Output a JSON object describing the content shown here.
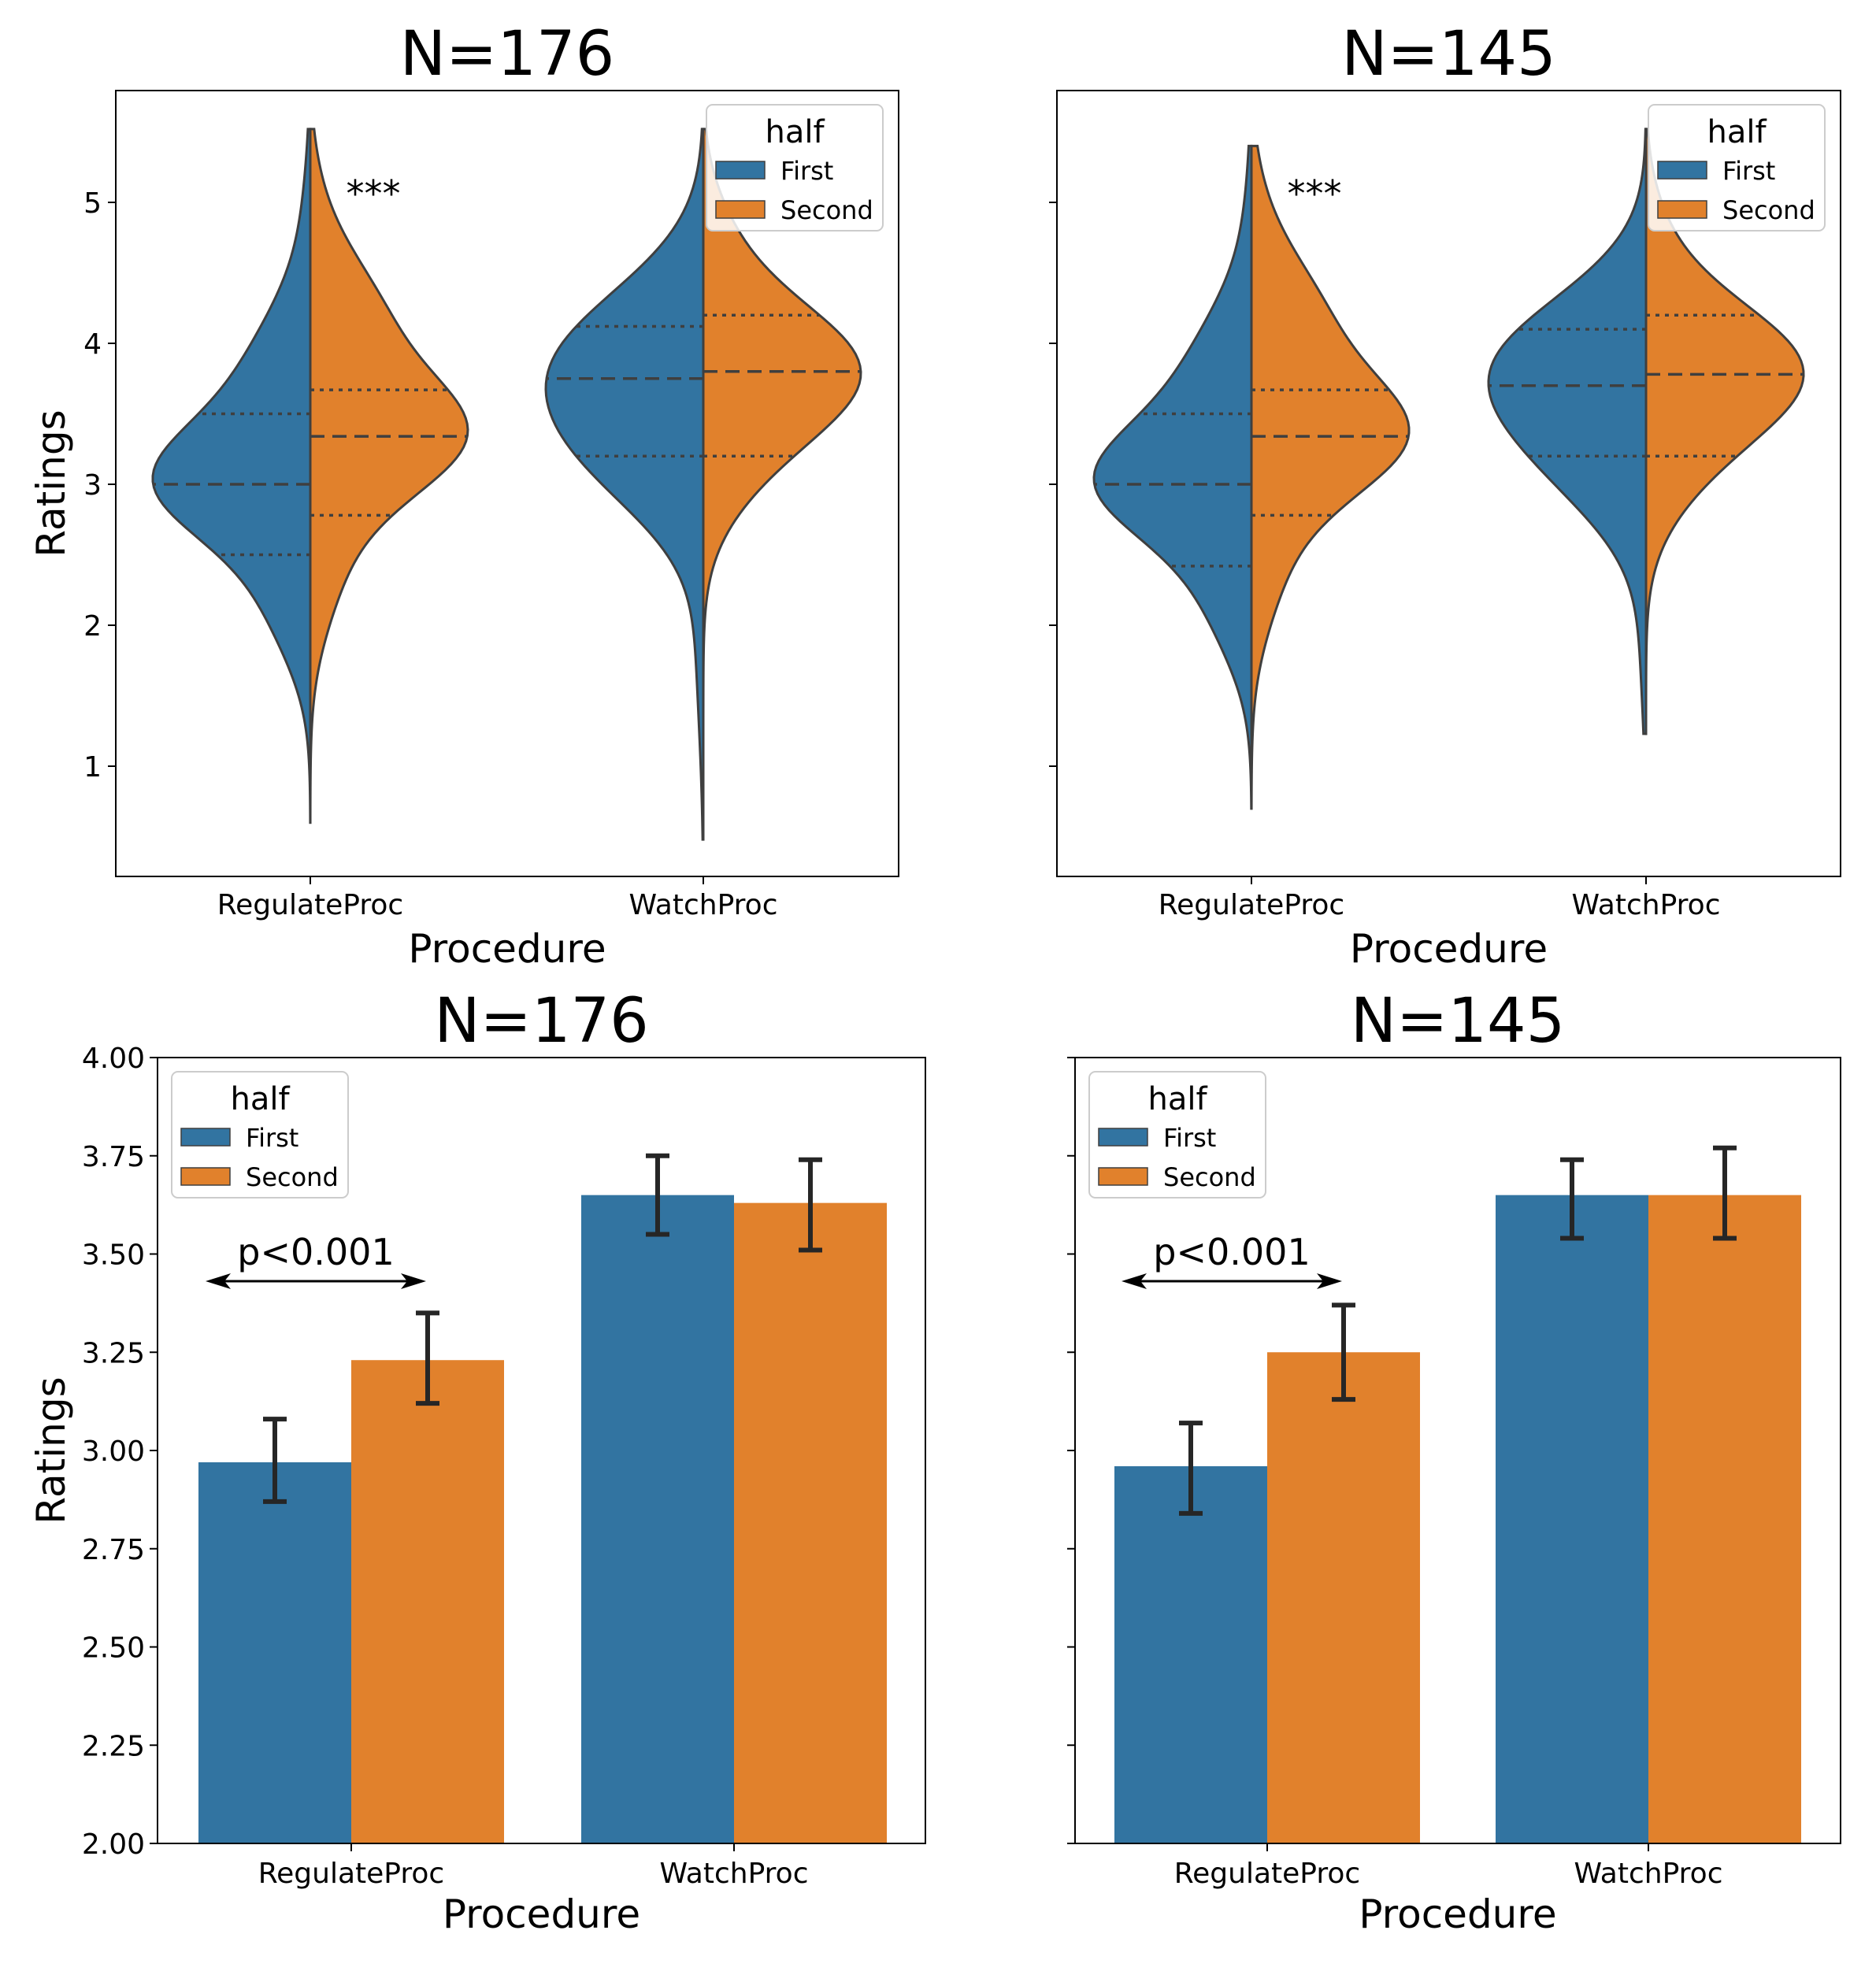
{
  "palette": {
    "first": "#3274a1",
    "second": "#e1812c",
    "edge": "#3f3f3f",
    "errbar": "#262626"
  },
  "chart_data": [
    {
      "type": "violin",
      "title": "N=176",
      "xlabel": "Procedure",
      "ylabel": "Ratings",
      "categories": [
        "RegulateProc",
        "WatchProc"
      ],
      "yticks": [
        "1",
        "2",
        "3",
        "4",
        "5"
      ],
      "ylim": [
        0.33,
        5.9
      ],
      "legend": {
        "title": "half",
        "entries": [
          "First",
          "Second"
        ],
        "placement": "upper right"
      },
      "annotation": "***",
      "series": [
        {
          "name": "First",
          "color": "#3274a1",
          "quartiles": [
            [
              2.5,
              3.0,
              3.5
            ],
            [
              3.2,
              3.75,
              4.12
            ]
          ],
          "range": [
            [
              0.6,
              5.52
            ],
            [
              0.48,
              5.52
            ]
          ]
        },
        {
          "name": "Second",
          "color": "#e1812c",
          "quartiles": [
            [
              2.78,
              3.34,
              3.67
            ],
            [
              3.2,
              3.8,
              4.2
            ]
          ],
          "range": [
            [
              0.6,
              5.52
            ],
            [
              0.48,
              5.52
            ]
          ]
        }
      ]
    },
    {
      "type": "violin",
      "title": "N=145",
      "xlabel": "Procedure",
      "ylabel": "",
      "categories": [
        "RegulateProc",
        "WatchProc"
      ],
      "yticks": [
        "1",
        "2",
        "3",
        "4",
        "5"
      ],
      "ylim": [
        0.33,
        5.9
      ],
      "legend": {
        "title": "half",
        "entries": [
          "First",
          "Second"
        ],
        "placement": "upper right"
      },
      "annotation": "***",
      "series": [
        {
          "name": "First",
          "color": "#3274a1",
          "quartiles": [
            [
              2.42,
              3.0,
              3.5
            ],
            [
              3.2,
              3.7,
              4.1
            ]
          ],
          "range": [
            [
              0.7,
              5.4
            ],
            [
              1.23,
              5.52
            ]
          ]
        },
        {
          "name": "Second",
          "color": "#e1812c",
          "quartiles": [
            [
              2.78,
              3.34,
              3.67
            ],
            [
              3.2,
              3.78,
              4.2
            ]
          ],
          "range": [
            [
              0.7,
              5.4
            ],
            [
              1.23,
              5.52
            ]
          ]
        }
      ]
    },
    {
      "type": "bar",
      "title": "N=176",
      "xlabel": "Procedure",
      "ylabel": "Ratings",
      "categories": [
        "RegulateProc",
        "WatchProc"
      ],
      "yticks": [
        "2.00",
        "2.25",
        "2.50",
        "2.75",
        "3.00",
        "3.25",
        "3.50",
        "3.75",
        "4.00"
      ],
      "ylim": [
        2.0,
        4.0
      ],
      "legend": {
        "title": "half",
        "entries": [
          "First",
          "Second"
        ],
        "placement": "upper left"
      },
      "annotation": "p<0.001",
      "series": [
        {
          "name": "First",
          "color": "#3274a1",
          "values": [
            2.97,
            3.65
          ],
          "ci": [
            [
              2.87,
              3.08
            ],
            [
              3.55,
              3.75
            ]
          ]
        },
        {
          "name": "Second",
          "color": "#e1812c",
          "values": [
            3.23,
            3.63
          ],
          "ci": [
            [
              3.12,
              3.35
            ],
            [
              3.51,
              3.74
            ]
          ]
        }
      ]
    },
    {
      "type": "bar",
      "title": "N=145",
      "xlabel": "Procedure",
      "ylabel": "",
      "categories": [
        "RegulateProc",
        "WatchProc"
      ],
      "yticks": [
        "2.00",
        "2.25",
        "2.50",
        "2.75",
        "3.00",
        "3.25",
        "3.50",
        "3.75",
        "4.00"
      ],
      "ylim": [
        2.0,
        4.0
      ],
      "legend": {
        "title": "half",
        "entries": [
          "First",
          "Second"
        ],
        "placement": "upper left"
      },
      "annotation": "p<0.001",
      "series": [
        {
          "name": "First",
          "color": "#3274a1",
          "values": [
            2.96,
            3.65
          ],
          "ci": [
            [
              2.84,
              3.07
            ],
            [
              3.54,
              3.74
            ]
          ]
        },
        {
          "name": "Second",
          "color": "#e1812c",
          "values": [
            3.25,
            3.65
          ],
          "ci": [
            [
              3.13,
              3.37
            ],
            [
              3.54,
              3.77
            ]
          ]
        }
      ]
    }
  ]
}
